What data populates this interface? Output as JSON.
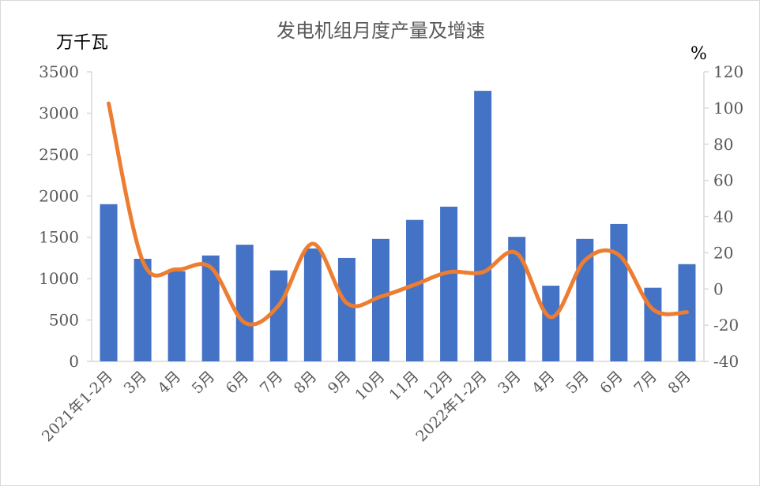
{
  "chart_data": {
    "type": "bar+line",
    "title": "发电机组月度产量及增速",
    "ylabel_left": "万千瓦",
    "ylabel_right": "%",
    "categories": [
      "2021年1-2月",
      "3月",
      "4月",
      "5月",
      "6月",
      "7月",
      "8月",
      "9月",
      "10月",
      "11月",
      "12月",
      "2022年1-2月",
      "3月",
      "4月",
      "5月",
      "6月",
      "7月",
      "8月"
    ],
    "y_left": {
      "min": 0,
      "max": 3500,
      "step": 500,
      "ticks": [
        "0",
        "500",
        "1000",
        "1500",
        "2000",
        "2500",
        "3000",
        "3500"
      ]
    },
    "y_right": {
      "min": -40,
      "max": 120,
      "step": 20,
      "ticks": [
        "-40",
        "-20",
        "0",
        "20",
        "40",
        "60",
        "80",
        "100",
        "120"
      ]
    },
    "grid": false,
    "legend": "none",
    "series": [
      {
        "type": "bar",
        "axis": "left",
        "color": "#4472C4",
        "values": [
          1900,
          1240,
          1090,
          1280,
          1410,
          1100,
          1365,
          1250,
          1480,
          1710,
          1870,
          3270,
          1505,
          915,
          1480,
          1660,
          890,
          1175
        ]
      },
      {
        "type": "line",
        "axis": "right",
        "color": "#ED7D31",
        "smooth": true,
        "values": [
          102.5,
          15.5,
          10.8,
          12.0,
          -18.6,
          -9.0,
          25.0,
          -7.8,
          -4.2,
          2.4,
          9.3,
          9.3,
          19.7,
          -15.6,
          15.8,
          18.8,
          -11.2,
          -12.8
        ]
      }
    ]
  }
}
